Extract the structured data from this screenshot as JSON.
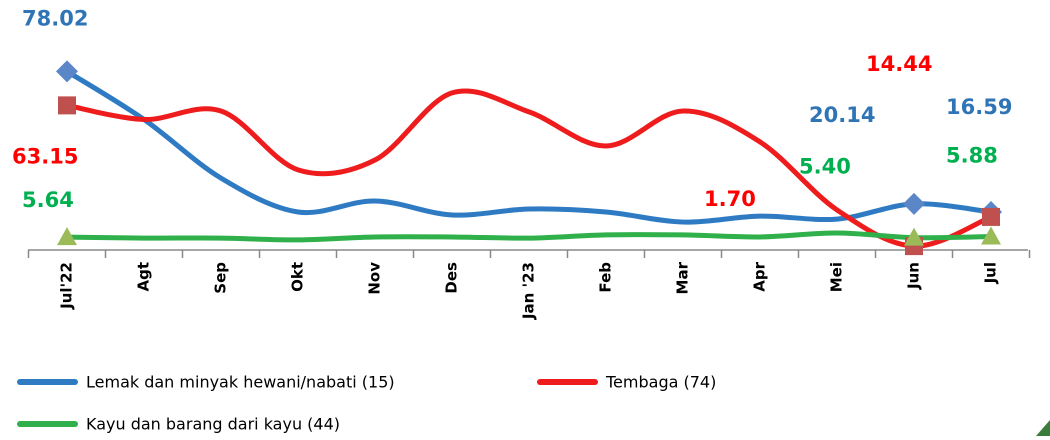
{
  "chart_data": {
    "type": "line",
    "categories": [
      "Jul'22",
      "Agt",
      "Sep",
      "Okt",
      "Nov",
      "Des",
      "Jan '23",
      "Feb",
      "Mar",
      "Apr",
      "Mei",
      "Jun",
      "Jul"
    ],
    "series": [
      {
        "name": "Lemak dan minyak hewani/nabati (15)",
        "color": "#2e7bc4",
        "marker_color": "#5b86c8",
        "marker": "diamond",
        "label_color": "#2f75b5",
        "values": [
          78.02,
          57,
          31.4,
          16.6,
          21.4,
          15.3,
          17.9,
          16.6,
          12.2,
          14.8,
          13.5,
          20.14,
          16.59
        ],
        "value_labels": [
          "78.02",
          null,
          null,
          null,
          null,
          null,
          null,
          null,
          null,
          null,
          null,
          "20.14",
          "16.59"
        ]
      },
      {
        "name": "Tembaga (74)",
        "color": "#ee1c1c",
        "marker_color": "#c0504d",
        "marker": "square",
        "label_color": "#ff0000",
        "values": [
          63.15,
          57,
          60.7,
          35,
          39.3,
          68.6,
          60.3,
          45.4,
          60.7,
          47.2,
          17.5,
          1.7,
          14.44
        ],
        "value_labels": [
          "63.15",
          null,
          null,
          null,
          null,
          null,
          null,
          null,
          null,
          null,
          null,
          "1.70",
          "14.44"
        ]
      },
      {
        "name": "Kayu dan barang dari kayu (44)",
        "color": "#2fb04a",
        "marker_color": "#9bbb59",
        "marker": "triangle",
        "label_color": "#00b050",
        "values": [
          5.64,
          5.2,
          5.2,
          4.4,
          5.7,
          5.7,
          5.2,
          6.6,
          6.6,
          5.7,
          7.4,
          5.4,
          5.88
        ],
        "value_labels": [
          "5.64",
          null,
          null,
          null,
          null,
          null,
          null,
          null,
          null,
          null,
          null,
          "5.40",
          "5.88"
        ]
      }
    ],
    "legend": "bottom"
  }
}
